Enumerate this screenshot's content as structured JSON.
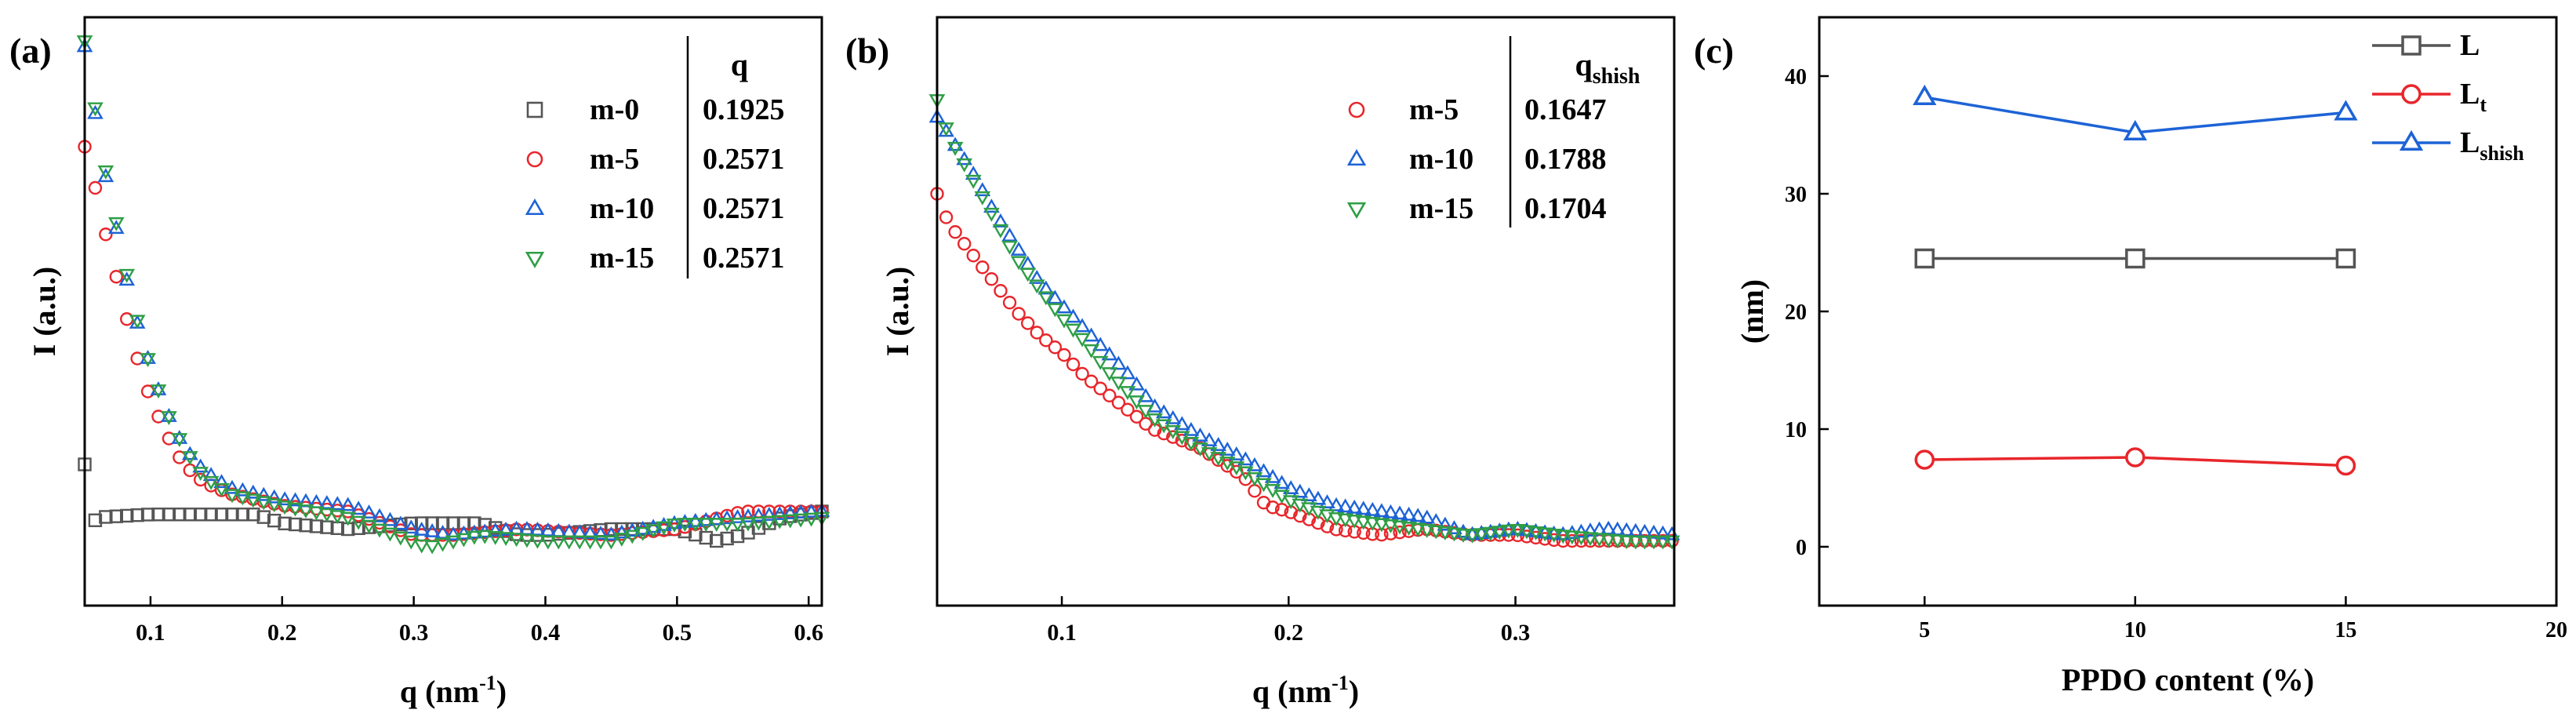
{
  "chart_data": [
    {
      "panel_label": "(a)",
      "type": "scatter",
      "xlabel": "q (nm",
      "xlabel_sup": "-1",
      "xlabel_close": ")",
      "ylabel": "I (a.u.)",
      "xlim": [
        0.05,
        0.61
      ],
      "ylim": [
        0,
        1
      ],
      "y_ticks_shown": false,
      "x_ticks": [
        0.1,
        0.2,
        0.3,
        0.4,
        0.5,
        0.6
      ],
      "x_tick_labels": [
        "0.1",
        "0.2",
        "0.3",
        "0.4",
        "0.5",
        "0.6"
      ],
      "table": {
        "header": "q",
        "rows": [
          {
            "name": "m-0",
            "q": "0.1925",
            "marker": "square",
            "color": "#555555"
          },
          {
            "name": "m-5",
            "q": "0.2571",
            "marker": "circle",
            "color": "#e8262b"
          },
          {
            "name": "m-10",
            "q": "0.2571",
            "marker": "triangle-up",
            "color": "#1d63d6"
          },
          {
            "name": "m-15",
            "q": "0.2571",
            "marker": "triangle-down",
            "color": "#2e9e45"
          }
        ]
      },
      "series": [
        {
          "name": "m-0",
          "marker": "square",
          "color": "#555555",
          "x_start": 0.05,
          "x_step": 0.008,
          "x_end": 0.61,
          "curve": [
            [
              0.05,
              0.24
            ],
            [
              0.052,
              0.13
            ],
            [
              0.06,
              0.15
            ],
            [
              0.1,
              0.155
            ],
            [
              0.15,
              0.155
            ],
            [
              0.18,
              0.155
            ],
            [
              0.2,
              0.14
            ],
            [
              0.25,
              0.13
            ],
            [
              0.3,
              0.14
            ],
            [
              0.35,
              0.14
            ],
            [
              0.38,
              0.12
            ],
            [
              0.4,
              0.12
            ],
            [
              0.45,
              0.13
            ],
            [
              0.5,
              0.13
            ],
            [
              0.53,
              0.11
            ],
            [
              0.55,
              0.12
            ],
            [
              0.58,
              0.15
            ],
            [
              0.61,
              0.16
            ]
          ]
        },
        {
          "name": "m-5",
          "marker": "circle",
          "color": "#e8262b",
          "x_start": 0.05,
          "x_step": 0.008,
          "x_end": 0.61,
          "curve": [
            [
              0.05,
              0.78
            ],
            [
              0.057,
              0.72
            ],
            [
              0.065,
              0.64
            ],
            [
              0.075,
              0.55
            ],
            [
              0.085,
              0.46
            ],
            [
              0.095,
              0.38
            ],
            [
              0.11,
              0.3
            ],
            [
              0.125,
              0.24
            ],
            [
              0.14,
              0.21
            ],
            [
              0.16,
              0.19
            ],
            [
              0.2,
              0.17
            ],
            [
              0.25,
              0.16
            ],
            [
              0.3,
              0.12
            ],
            [
              0.33,
              0.12
            ],
            [
              0.38,
              0.13
            ],
            [
              0.45,
              0.12
            ],
            [
              0.5,
              0.13
            ],
            [
              0.55,
              0.16
            ],
            [
              0.61,
              0.16
            ]
          ]
        },
        {
          "name": "m-10",
          "marker": "triangle-up",
          "color": "#1d63d6",
          "x_start": 0.05,
          "x_step": 0.008,
          "x_end": 0.61,
          "curve": [
            [
              0.05,
              0.95
            ],
            [
              0.057,
              0.85
            ],
            [
              0.065,
              0.74
            ],
            [
              0.075,
              0.63
            ],
            [
              0.085,
              0.52
            ],
            [
              0.095,
              0.44
            ],
            [
              0.11,
              0.34
            ],
            [
              0.125,
              0.27
            ],
            [
              0.14,
              0.23
            ],
            [
              0.16,
              0.2
            ],
            [
              0.2,
              0.18
            ],
            [
              0.25,
              0.17
            ],
            [
              0.3,
              0.13
            ],
            [
              0.33,
              0.12
            ],
            [
              0.38,
              0.13
            ],
            [
              0.45,
              0.12
            ],
            [
              0.5,
              0.14
            ],
            [
              0.55,
              0.15
            ],
            [
              0.61,
              0.16
            ]
          ]
        },
        {
          "name": "m-15",
          "marker": "triangle-down",
          "color": "#2e9e45",
          "x_start": 0.05,
          "x_step": 0.008,
          "x_end": 0.61,
          "curve": [
            [
              0.05,
              0.96
            ],
            [
              0.057,
              0.86
            ],
            [
              0.065,
              0.75
            ],
            [
              0.075,
              0.64
            ],
            [
              0.085,
              0.53
            ],
            [
              0.095,
              0.44
            ],
            [
              0.11,
              0.34
            ],
            [
              0.125,
              0.27
            ],
            [
              0.14,
              0.22
            ],
            [
              0.16,
              0.19
            ],
            [
              0.2,
              0.17
            ],
            [
              0.25,
              0.15
            ],
            [
              0.31,
              0.1
            ],
            [
              0.35,
              0.12
            ],
            [
              0.4,
              0.11
            ],
            [
              0.45,
              0.11
            ],
            [
              0.5,
              0.14
            ],
            [
              0.55,
              0.14
            ],
            [
              0.61,
              0.15
            ]
          ]
        }
      ]
    },
    {
      "panel_label": "(b)",
      "type": "scatter",
      "xlabel": "q (nm",
      "xlabel_sup": "-1",
      "xlabel_close": ")",
      "ylabel": "I (a.u.)",
      "xlim": [
        0.045,
        0.37
      ],
      "ylim": [
        0,
        1
      ],
      "y_ticks_shown": false,
      "x_ticks": [
        0.1,
        0.2,
        0.3
      ],
      "x_tick_labels": [
        "0.1",
        "0.2",
        "0.3"
      ],
      "table": {
        "header": "q",
        "header_sub": "shish",
        "rows": [
          {
            "name": "m-5",
            "q": "0.1647",
            "marker": "circle",
            "color": "#e8262b"
          },
          {
            "name": "m-10",
            "q": "0.1788",
            "marker": "triangle-up",
            "color": "#1d63d6"
          },
          {
            "name": "m-15",
            "q": "0.1704",
            "marker": "triangle-down",
            "color": "#2e9e45"
          }
        ]
      },
      "series": [
        {
          "name": "m-5",
          "marker": "circle",
          "color": "#e8262b",
          "x_start": 0.045,
          "x_step": 0.004,
          "x_end": 0.37,
          "curve": [
            [
              0.045,
              0.7
            ],
            [
              0.05,
              0.65
            ],
            [
              0.06,
              0.6
            ],
            [
              0.07,
              0.55
            ],
            [
              0.08,
              0.5
            ],
            [
              0.09,
              0.46
            ],
            [
              0.1,
              0.43
            ],
            [
              0.11,
              0.39
            ],
            [
              0.12,
              0.36
            ],
            [
              0.13,
              0.33
            ],
            [
              0.14,
              0.3
            ],
            [
              0.16,
              0.27
            ],
            [
              0.18,
              0.22
            ],
            [
              0.19,
              0.17
            ],
            [
              0.2,
              0.16
            ],
            [
              0.22,
              0.13
            ],
            [
              0.24,
              0.12
            ],
            [
              0.26,
              0.13
            ],
            [
              0.28,
              0.12
            ],
            [
              0.3,
              0.12
            ],
            [
              0.32,
              0.11
            ],
            [
              0.35,
              0.11
            ],
            [
              0.37,
              0.11
            ]
          ]
        },
        {
          "name": "m-10",
          "marker": "triangle-up",
          "color": "#1d63d6",
          "x_start": 0.045,
          "x_step": 0.004,
          "x_end": 0.37,
          "curve": [
            [
              0.045,
              0.83
            ],
            [
              0.05,
              0.8
            ],
            [
              0.06,
              0.74
            ],
            [
              0.07,
              0.67
            ],
            [
              0.08,
              0.61
            ],
            [
              0.09,
              0.55
            ],
            [
              0.1,
              0.51
            ],
            [
              0.11,
              0.47
            ],
            [
              0.12,
              0.43
            ],
            [
              0.13,
              0.39
            ],
            [
              0.14,
              0.34
            ],
            [
              0.16,
              0.29
            ],
            [
              0.18,
              0.25
            ],
            [
              0.2,
              0.2
            ],
            [
              0.22,
              0.17
            ],
            [
              0.24,
              0.16
            ],
            [
              0.26,
              0.15
            ],
            [
              0.28,
              0.12
            ],
            [
              0.3,
              0.13
            ],
            [
              0.32,
              0.12
            ],
            [
              0.34,
              0.13
            ],
            [
              0.37,
              0.12
            ]
          ]
        },
        {
          "name": "m-15",
          "marker": "triangle-down",
          "color": "#2e9e45",
          "x_start": 0.045,
          "x_step": 0.004,
          "x_end": 0.37,
          "curve": [
            [
              0.045,
              0.86
            ],
            [
              0.05,
              0.8
            ],
            [
              0.06,
              0.73
            ],
            [
              0.07,
              0.66
            ],
            [
              0.08,
              0.59
            ],
            [
              0.09,
              0.54
            ],
            [
              0.1,
              0.49
            ],
            [
              0.11,
              0.45
            ],
            [
              0.12,
              0.4
            ],
            [
              0.13,
              0.36
            ],
            [
              0.14,
              0.32
            ],
            [
              0.16,
              0.27
            ],
            [
              0.18,
              0.23
            ],
            [
              0.2,
              0.18
            ],
            [
              0.22,
              0.15
            ],
            [
              0.24,
              0.14
            ],
            [
              0.26,
              0.13
            ],
            [
              0.28,
              0.12
            ],
            [
              0.3,
              0.13
            ],
            [
              0.32,
              0.12
            ],
            [
              0.35,
              0.11
            ],
            [
              0.37,
              0.11
            ]
          ]
        }
      ]
    },
    {
      "panel_label": "(c)",
      "type": "line",
      "xlabel": "PPDO content (%)",
      "ylabel": "(nm)",
      "xlim": [
        2.5,
        20
      ],
      "ylim": [
        -5,
        45
      ],
      "x_ticks": [
        5,
        10,
        15,
        20
      ],
      "x_tick_labels": [
        "5",
        "10",
        "15",
        "20"
      ],
      "y_ticks": [
        0,
        10,
        20,
        30,
        40
      ],
      "y_tick_labels": [
        "0",
        "10",
        "20",
        "30",
        "40"
      ],
      "legend_position": "top-right",
      "series": [
        {
          "name": "L",
          "name_sub": "",
          "marker": "square",
          "color": "#555555",
          "x": [
            5,
            10,
            15
          ],
          "values": [
            24.5,
            24.5,
            24.5
          ]
        },
        {
          "name": "L",
          "name_sub": "t",
          "marker": "circle",
          "color": "#e8262b",
          "x": [
            5,
            10,
            15
          ],
          "values": [
            7.4,
            7.6,
            6.9
          ]
        },
        {
          "name": "L",
          "name_sub": "shish",
          "marker": "triangle-up",
          "color": "#1d63d6",
          "x": [
            5,
            10,
            15
          ],
          "values": [
            38.2,
            35.2,
            36.9
          ]
        }
      ]
    }
  ]
}
